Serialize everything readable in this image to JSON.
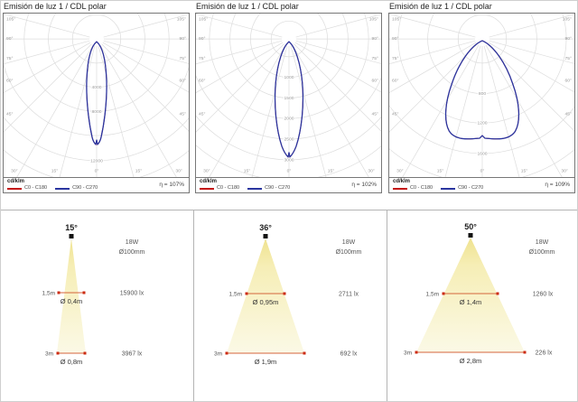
{
  "colors": {
    "curve_c0_c180": "#c41212",
    "curve_c90_c270": "#2a35a0",
    "grid": "#dcdcdc",
    "cone_top": "#efe28e",
    "cone_mid": "#f6eeb6",
    "cone_bottom": "#fbf9e6",
    "measure_line": "#d5643c",
    "measure_dot": "#cc2b12"
  },
  "polar_common": {
    "angle_labels_side": [
      "105°",
      "90°",
      "75°",
      "60°",
      "45°"
    ],
    "angle_labels_bottom": [
      "30°",
      "15°",
      "0°",
      "15°",
      "30°"
    ]
  },
  "polars": [
    {
      "title": "Emisión de luz 1 / CDL polar",
      "unit": "cd/klm",
      "legend_c0": "C0 - C180",
      "legend_c90": "C90 - C270",
      "eta": "η = 107%"
    },
    {
      "title": "Emisión de luz 1 / CDL polar",
      "unit": "cd/klm",
      "legend_c0": "C0 - C180",
      "legend_c90": "C90 - C270",
      "eta": "η = 102%"
    },
    {
      "title": "Emisión de luz 1 / CDL polar",
      "unit": "cd/klm",
      "legend_c0": "C0 - C180",
      "legend_c90": "C90 - C270",
      "eta": "η = 109%"
    }
  ],
  "chart_data": [
    {
      "type": "polar-intensity",
      "title": "Emisión de luz 1 / CDL polar",
      "unit": "cd/klm",
      "series": [
        "C0 - C180",
        "C90 - C270"
      ],
      "ring_tick_labels": [
        "4000",
        "8000",
        "12000"
      ],
      "angle_ticks_deg": [
        0,
        15,
        30,
        45,
        60,
        75,
        90,
        105
      ],
      "efficiency": "η = 107%",
      "beam_angle_deg": 15,
      "peak_intensity_cd_per_klm_approx": 11000,
      "shape": "narrow teardrop with notch at 0°"
    },
    {
      "type": "polar-intensity",
      "title": "Emisión de luz 1 / CDL polar",
      "unit": "cd/klm",
      "series": [
        "C0 - C180",
        "C90 - C270"
      ],
      "ring_tick_labels": [
        "1000",
        "1500",
        "2000",
        "2500",
        "3000"
      ],
      "angle_ticks_deg": [
        0,
        15,
        30,
        45,
        60,
        75,
        90,
        105
      ],
      "efficiency": "η = 102%",
      "beam_angle_deg": 36,
      "peak_intensity_cd_per_klm_approx": 3000,
      "shape": "medium teardrop with small notch at 0°"
    },
    {
      "type": "polar-intensity",
      "title": "Emisión de luz 1 / CDL polar",
      "unit": "cd/klm",
      "series": [
        "C0 - C180",
        "C90 - C270"
      ],
      "ring_tick_labels": [
        "800",
        "1200",
        "1600"
      ],
      "angle_ticks_deg": [
        0,
        15,
        30,
        45,
        60,
        75,
        90,
        105
      ],
      "efficiency": "η = 109%",
      "beam_angle_deg": 50,
      "peak_intensity_cd_per_klm_approx": 1450,
      "shape": "wide onion with flat bottom and slight center dip"
    }
  ],
  "beams": [
    {
      "angle": "15°",
      "power": "18W",
      "diameter": "Ø100mm",
      "rows": [
        {
          "distance": "1,5m",
          "spot_diameter": "Ø 0,4m",
          "illuminance": "15900 lx"
        },
        {
          "distance": "3m",
          "spot_diameter": "Ø 0,8m",
          "illuminance": "3967 lx"
        }
      ]
    },
    {
      "angle": "36°",
      "power": "18W",
      "diameter": "Ø100mm",
      "rows": [
        {
          "distance": "1,5m",
          "spot_diameter": "Ø 0,95m",
          "illuminance": "2711 lx"
        },
        {
          "distance": "3m",
          "spot_diameter": "Ø 1,9m",
          "illuminance": "692 lx"
        }
      ]
    },
    {
      "angle": "50°",
      "power": "18W",
      "diameter": "Ø100mm",
      "rows": [
        {
          "distance": "1,5m",
          "spot_diameter": "Ø 1,4m",
          "illuminance": "1260 lx"
        },
        {
          "distance": "3m",
          "spot_diameter": "Ø 2,8m",
          "illuminance": "226 lx"
        }
      ]
    }
  ]
}
